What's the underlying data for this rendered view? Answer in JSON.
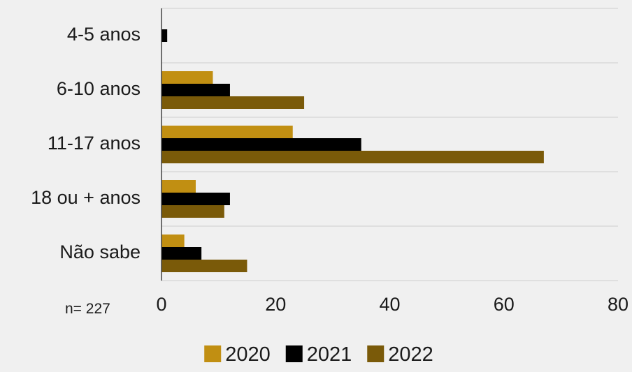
{
  "chart_data": {
    "type": "bar",
    "orientation": "horizontal",
    "categories": [
      "4-5 anos",
      "6-10 anos",
      "11-17 anos",
      "18 ou + anos",
      "Não sabe"
    ],
    "series": [
      {
        "name": "2020",
        "color": "#c18f12",
        "values": [
          0,
          9,
          23,
          6,
          4
        ]
      },
      {
        "name": "2021",
        "color": "#000000",
        "values": [
          1,
          12,
          35,
          12,
          7
        ]
      },
      {
        "name": "2022",
        "color": "#7a5a09",
        "values": [
          0,
          25,
          67,
          11,
          15
        ]
      }
    ],
    "xlim": [
      0,
      80
    ],
    "xticks": [
      0,
      20,
      40,
      60,
      80
    ],
    "grid": true,
    "legend_position": "bottom-center",
    "note": "n= 227",
    "title": "",
    "xlabel": "",
    "ylabel": ""
  }
}
